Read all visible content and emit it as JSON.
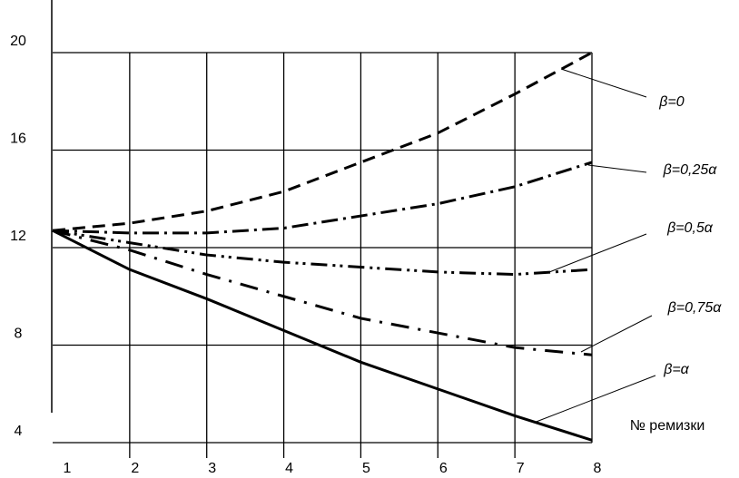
{
  "chart_data": {
    "type": "line",
    "x_label": "№ ремизки",
    "x": [
      1,
      2,
      3,
      4,
      5,
      6,
      7,
      8
    ],
    "xlim": [
      1,
      8
    ],
    "xticks": [
      1,
      2,
      3,
      4,
      5,
      6,
      7,
      8
    ],
    "ylim": [
      4,
      20
    ],
    "yticks": [
      4,
      8,
      12,
      16,
      20
    ],
    "grid": true,
    "series": [
      {
        "name": "β=0",
        "color": "#000000",
        "dash": "14,8",
        "values": [
          12.7,
          13.0,
          13.5,
          14.3,
          15.5,
          16.7,
          18.3,
          20.0
        ]
      },
      {
        "name": "β=0,25α",
        "color": "#000000",
        "dash": "18,6,3,6",
        "values": [
          12.7,
          12.6,
          12.6,
          12.8,
          13.3,
          13.8,
          14.5,
          15.5
        ]
      },
      {
        "name": "β=0,5α",
        "color": "#000000",
        "dash": "18,6,3,5,3,6",
        "values": [
          12.7,
          12.2,
          11.7,
          11.4,
          11.2,
          11.0,
          10.9,
          11.1
        ]
      },
      {
        "name": "β=0,75α",
        "color": "#000000",
        "dash": "20,10,3,10",
        "values": [
          12.7,
          11.9,
          10.9,
          10.0,
          9.1,
          8.5,
          7.9,
          7.6
        ]
      },
      {
        "name": "β=α",
        "color": "#000000",
        "dash": "",
        "values": [
          12.7,
          11.1,
          9.9,
          8.6,
          7.3,
          6.2,
          5.1,
          4.1
        ]
      }
    ]
  }
}
